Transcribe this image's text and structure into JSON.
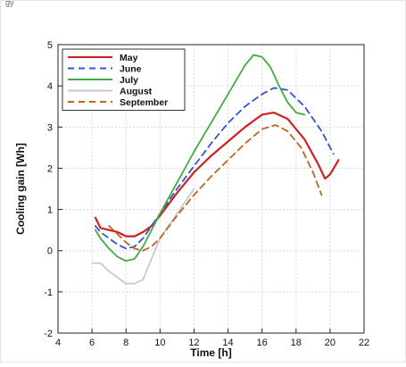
{
  "corner_mark": "gy",
  "chart_data": {
    "type": "line",
    "title": "",
    "xlabel": "Time [h]",
    "ylabel": "Cooling gain [Wh]",
    "xlim": [
      4,
      22
    ],
    "ylim": [
      -2,
      5
    ],
    "xticks": [
      4,
      6,
      8,
      10,
      12,
      14,
      16,
      18,
      20,
      22
    ],
    "yticks": [
      -2,
      -1,
      0,
      1,
      2,
      3,
      4,
      5
    ],
    "grid": true,
    "legend_position": "top-left",
    "series": [
      {
        "name": "May",
        "color": "#cc2222",
        "dash": "solid",
        "x": [
          6.2,
          6.5,
          7.0,
          7.5,
          8.0,
          8.5,
          9.0,
          9.5,
          10.0,
          11.0,
          12.0,
          13.0,
          14.0,
          15.0,
          16.0,
          16.7,
          17.5,
          18.5,
          19.3,
          19.7,
          20.0,
          20.5
        ],
        "y": [
          0.8,
          0.55,
          0.5,
          0.45,
          0.35,
          0.35,
          0.45,
          0.6,
          0.85,
          1.4,
          1.9,
          2.3,
          2.65,
          3.0,
          3.3,
          3.35,
          3.2,
          2.7,
          2.1,
          1.75,
          1.85,
          2.2
        ]
      },
      {
        "name": "June",
        "color": "#3355cc",
        "dash": "dashed",
        "x": [
          6.2,
          6.5,
          7.0,
          7.5,
          8.0,
          8.5,
          9.0,
          9.5,
          10.0,
          11.0,
          12.0,
          13.0,
          14.0,
          15.0,
          16.0,
          16.7,
          17.5,
          18.5,
          19.5,
          20.2
        ],
        "y": [
          0.6,
          0.45,
          0.3,
          0.15,
          0.05,
          0.1,
          0.3,
          0.6,
          0.9,
          1.5,
          2.05,
          2.6,
          3.1,
          3.5,
          3.8,
          3.95,
          3.9,
          3.5,
          2.9,
          2.35
        ]
      },
      {
        "name": "July",
        "color": "#44aa44",
        "dash": "solid",
        "x": [
          6.2,
          6.5,
          7.0,
          7.5,
          8.0,
          8.5,
          9.0,
          9.5,
          10.0,
          11.0,
          12.0,
          13.0,
          14.0,
          15.0,
          15.5,
          16.0,
          16.5,
          17.0,
          17.5,
          18.0,
          18.5
        ],
        "y": [
          0.5,
          0.3,
          0.05,
          -0.15,
          -0.25,
          -0.2,
          0.1,
          0.5,
          0.9,
          1.65,
          2.4,
          3.1,
          3.8,
          4.5,
          4.75,
          4.7,
          4.45,
          4.0,
          3.6,
          3.35,
          3.3
        ]
      },
      {
        "name": "August",
        "color": "#c8c8c8",
        "dash": "solid",
        "x": [
          6.0,
          6.5,
          7.0,
          7.5,
          8.0,
          8.5,
          9.0,
          9.3,
          9.6,
          10.0,
          11.0,
          12.0
        ],
        "y": [
          -0.3,
          -0.3,
          -0.5,
          -0.65,
          -0.8,
          -0.8,
          -0.7,
          -0.4,
          -0.1,
          0.3,
          0.9,
          1.5
        ]
      },
      {
        "name": "September",
        "color": "#bb6622",
        "dash": "dashed",
        "x": [
          7.0,
          7.5,
          8.0,
          8.5,
          9.0,
          9.5,
          10.0,
          11.0,
          12.0,
          13.0,
          14.0,
          15.0,
          16.0,
          16.8,
          17.5,
          18.3,
          19.0,
          19.5
        ],
        "y": [
          0.6,
          0.4,
          0.2,
          0.05,
          0.0,
          0.1,
          0.3,
          0.85,
          1.35,
          1.8,
          2.2,
          2.6,
          2.95,
          3.05,
          2.9,
          2.5,
          1.9,
          1.35
        ]
      }
    ]
  }
}
